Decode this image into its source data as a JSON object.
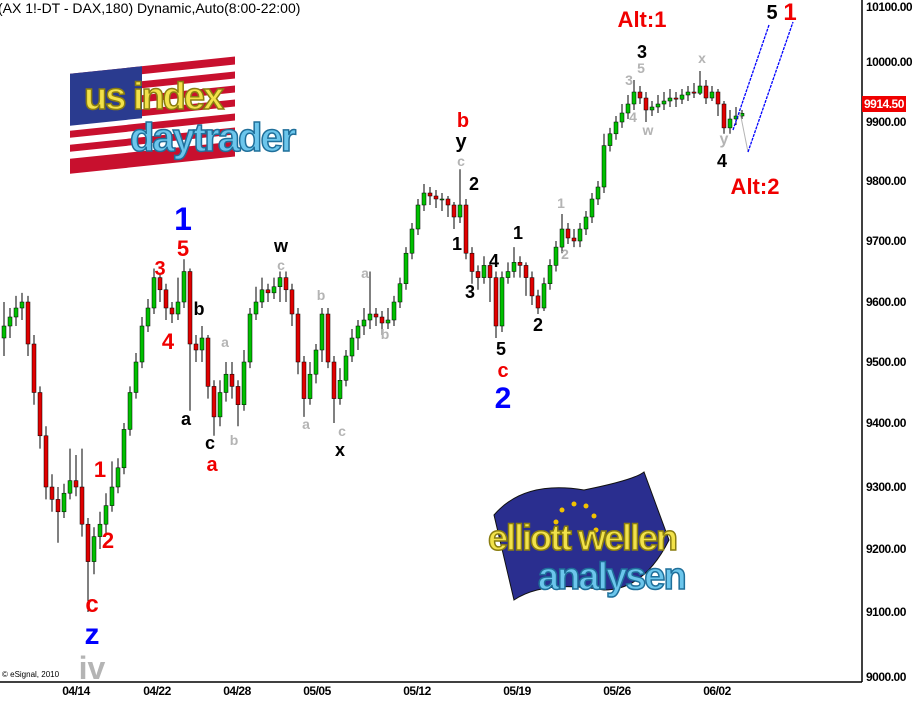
{
  "title": "(AX 1!-DT - DAX,180) Dynamic,Auto(8:00-22:00)",
  "copyright": "© eSignal, 2010",
  "logos": {
    "top": {
      "line1": "us index",
      "line2": "daytrader"
    },
    "bottom": {
      "line1": "elliott wellen",
      "line2": "analysen"
    }
  },
  "colors": {
    "up": "#00c000",
    "down": "#e00000",
    "label_red": "#f00000",
    "label_blue": "#0000ff",
    "label_gray": "#b4b4b4",
    "label_black": "#000000",
    "channel": "#0000ff"
  },
  "annotations": [
    {
      "text": "Alt:1",
      "color": "red"
    },
    {
      "text": "3",
      "color": "black"
    },
    {
      "text": "5",
      "color": "gray"
    },
    {
      "text": "3",
      "color": "gray"
    },
    {
      "text": "4",
      "color": "gray"
    },
    {
      "text": "w",
      "color": "gray"
    },
    {
      "text": "x",
      "color": "gray"
    },
    {
      "text": "5",
      "color": "black"
    },
    {
      "text": "1",
      "color": "red"
    },
    {
      "text": "y",
      "color": "gray"
    },
    {
      "text": "4",
      "color": "black"
    },
    {
      "text": "Alt:2",
      "color": "red"
    },
    {
      "text": "b",
      "color": "red"
    },
    {
      "text": "y",
      "color": "black"
    },
    {
      "text": "c",
      "color": "gray"
    },
    {
      "text": "2",
      "color": "black"
    },
    {
      "text": "1",
      "color": "black"
    },
    {
      "text": "4",
      "color": "black"
    },
    {
      "text": "3",
      "color": "black"
    },
    {
      "text": "1",
      "color": "black"
    },
    {
      "text": "1",
      "color": "gray"
    },
    {
      "text": "2",
      "color": "gray"
    },
    {
      "text": "2",
      "color": "black"
    },
    {
      "text": "5",
      "color": "black"
    },
    {
      "text": "c",
      "color": "red"
    },
    {
      "text": "2",
      "color": "blue"
    },
    {
      "text": "1",
      "color": "blue"
    },
    {
      "text": "5",
      "color": "red"
    },
    {
      "text": "3",
      "color": "red"
    },
    {
      "text": "b",
      "color": "black"
    },
    {
      "text": "4",
      "color": "red"
    },
    {
      "text": "w",
      "color": "black"
    },
    {
      "text": "c",
      "color": "gray"
    },
    {
      "text": "a",
      "color": "gray"
    },
    {
      "text": "b",
      "color": "gray"
    },
    {
      "text": "a",
      "color": "black"
    },
    {
      "text": "c",
      "color": "black"
    },
    {
      "text": "a",
      "color": "red"
    },
    {
      "text": "b",
      "color": "gray"
    },
    {
      "text": "a",
      "color": "gray"
    },
    {
      "text": "b",
      "color": "gray"
    },
    {
      "text": "a",
      "color": "gray"
    },
    {
      "text": "c",
      "color": "gray"
    },
    {
      "text": "x",
      "color": "black"
    },
    {
      "text": "1",
      "color": "red"
    },
    {
      "text": "2",
      "color": "red"
    },
    {
      "text": "c",
      "color": "red"
    },
    {
      "text": "z",
      "color": "blue"
    },
    {
      "text": "iv",
      "color": "gray"
    }
  ],
  "chart_data": {
    "type": "candlestick",
    "title": "(AX 1!-DT - DAX,180) Dynamic,Auto(8:00-22:00)",
    "last_price": "9914.50",
    "y_ticks": [
      "10100.00",
      "10000.00",
      "9900.00",
      "9800.00",
      "9700.00",
      "9600.00",
      "9500.00",
      "9400.00",
      "9300.00",
      "9200.00",
      "9100.00",
      "9000.00"
    ],
    "x_ticks": [
      "04/14",
      "04/22",
      "04/28",
      "05/05",
      "05/12",
      "05/19",
      "05/26",
      "06/02"
    ],
    "ylim": [
      9000,
      10100
    ],
    "grid": false,
    "ohlc": [
      [
        9540,
        9600,
        9510,
        9560
      ],
      [
        9560,
        9590,
        9540,
        9575
      ],
      [
        9575,
        9610,
        9560,
        9590
      ],
      [
        9590,
        9615,
        9570,
        9600
      ],
      [
        9600,
        9610,
        9510,
        9530
      ],
      [
        9530,
        9545,
        9430,
        9450
      ],
      [
        9450,
        9460,
        9360,
        9380
      ],
      [
        9380,
        9395,
        9280,
        9300
      ],
      [
        9300,
        9320,
        9260,
        9280
      ],
      [
        9280,
        9300,
        9210,
        9260
      ],
      [
        9260,
        9305,
        9250,
        9290
      ],
      [
        9290,
        9360,
        9280,
        9310
      ],
      [
        9310,
        9350,
        9285,
        9300
      ],
      [
        9300,
        9360,
        9220,
        9240
      ],
      [
        9240,
        9250,
        9100,
        9180
      ],
      [
        9180,
        9235,
        9160,
        9220
      ],
      [
        9220,
        9260,
        9200,
        9240
      ],
      [
        9240,
        9290,
        9225,
        9270
      ],
      [
        9270,
        9340,
        9260,
        9300
      ],
      [
        9300,
        9345,
        9290,
        9330
      ],
      [
        9330,
        9400,
        9320,
        9390
      ],
      [
        9390,
        9460,
        9380,
        9450
      ],
      [
        9450,
        9515,
        9440,
        9500
      ],
      [
        9500,
        9575,
        9490,
        9560
      ],
      [
        9560,
        9605,
        9550,
        9590
      ],
      [
        9590,
        9655,
        9580,
        9640
      ],
      [
        9640,
        9645,
        9600,
        9620
      ],
      [
        9620,
        9630,
        9570,
        9590
      ],
      [
        9590,
        9600,
        9565,
        9580
      ],
      [
        9580,
        9640,
        9570,
        9600
      ],
      [
        9600,
        9670,
        9590,
        9650
      ],
      [
        9650,
        9655,
        9420,
        9530
      ],
      [
        9530,
        9545,
        9500,
        9520
      ],
      [
        9520,
        9560,
        9500,
        9540
      ],
      [
        9540,
        9545,
        9440,
        9460
      ],
      [
        9460,
        9470,
        9380,
        9410
      ],
      [
        9410,
        9470,
        9395,
        9450
      ],
      [
        9450,
        9500,
        9435,
        9480
      ],
      [
        9480,
        9500,
        9440,
        9460
      ],
      [
        9460,
        9470,
        9395,
        9430
      ],
      [
        9430,
        9520,
        9420,
        9500
      ],
      [
        9500,
        9590,
        9490,
        9580
      ],
      [
        9580,
        9625,
        9570,
        9600
      ],
      [
        9600,
        9640,
        9590,
        9620
      ],
      [
        9620,
        9630,
        9600,
        9615
      ],
      [
        9615,
        9640,
        9605,
        9625
      ],
      [
        9625,
        9650,
        9600,
        9640
      ],
      [
        9640,
        9650,
        9600,
        9620
      ],
      [
        9620,
        9630,
        9560,
        9580
      ],
      [
        9580,
        9590,
        9480,
        9500
      ],
      [
        9500,
        9510,
        9410,
        9440
      ],
      [
        9440,
        9500,
        9430,
        9480
      ],
      [
        9480,
        9530,
        9465,
        9520
      ],
      [
        9520,
        9590,
        9500,
        9580
      ],
      [
        9580,
        9590,
        9490,
        9500
      ],
      [
        9500,
        9510,
        9400,
        9440
      ],
      [
        9440,
        9490,
        9430,
        9470
      ],
      [
        9470,
        9520,
        9460,
        9510
      ],
      [
        9510,
        9555,
        9500,
        9540
      ],
      [
        9540,
        9570,
        9520,
        9560
      ],
      [
        9560,
        9590,
        9545,
        9570
      ],
      [
        9570,
        9650,
        9555,
        9580
      ],
      [
        9580,
        9590,
        9560,
        9575
      ],
      [
        9575,
        9585,
        9545,
        9565
      ],
      [
        9565,
        9590,
        9555,
        9570
      ],
      [
        9570,
        9610,
        9560,
        9600
      ],
      [
        9600,
        9640,
        9590,
        9630
      ],
      [
        9630,
        9690,
        9620,
        9680
      ],
      [
        9680,
        9730,
        9670,
        9720
      ],
      [
        9720,
        9770,
        9710,
        9760
      ],
      [
        9760,
        9795,
        9750,
        9780
      ],
      [
        9780,
        9790,
        9760,
        9775
      ],
      [
        9775,
        9785,
        9755,
        9770
      ],
      [
        9770,
        9780,
        9750,
        9770
      ],
      [
        9770,
        9775,
        9740,
        9760
      ],
      [
        9760,
        9765,
        9720,
        9740
      ],
      [
        9740,
        9820,
        9730,
        9760
      ],
      [
        9760,
        9770,
        9670,
        9680
      ],
      [
        9680,
        9690,
        9630,
        9650
      ],
      [
        9650,
        9660,
        9620,
        9640
      ],
      [
        9640,
        9675,
        9630,
        9660
      ],
      [
        9660,
        9665,
        9600,
        9640
      ],
      [
        9640,
        9650,
        9540,
        9560
      ],
      [
        9560,
        9650,
        9550,
        9640
      ],
      [
        9640,
        9665,
        9630,
        9650
      ],
      [
        9650,
        9690,
        9640,
        9665
      ],
      [
        9665,
        9675,
        9640,
        9660
      ],
      [
        9660,
        9665,
        9610,
        9640
      ],
      [
        9640,
        9650,
        9595,
        9610
      ],
      [
        9610,
        9620,
        9580,
        9590
      ],
      [
        9590,
        9640,
        9585,
        9630
      ],
      [
        9630,
        9670,
        9620,
        9660
      ],
      [
        9660,
        9700,
        9650,
        9690
      ],
      [
        9690,
        9745,
        9680,
        9720
      ],
      [
        9720,
        9730,
        9695,
        9705
      ],
      [
        9705,
        9720,
        9690,
        9700
      ],
      [
        9700,
        9730,
        9690,
        9720
      ],
      [
        9720,
        9750,
        9710,
        9740
      ],
      [
        9740,
        9780,
        9730,
        9770
      ],
      [
        9770,
        9800,
        9760,
        9790
      ],
      [
        9790,
        9880,
        9780,
        9860
      ],
      [
        9860,
        9890,
        9850,
        9880
      ],
      [
        9880,
        9910,
        9870,
        9900
      ],
      [
        9900,
        9930,
        9890,
        9915
      ],
      [
        9915,
        9945,
        9905,
        9930
      ],
      [
        9930,
        9970,
        9920,
        9950
      ],
      [
        9950,
        9960,
        9930,
        9940
      ],
      [
        9940,
        9950,
        9900,
        9920
      ],
      [
        9920,
        9935,
        9910,
        9925
      ],
      [
        9925,
        9945,
        9915,
        9930
      ],
      [
        9930,
        9950,
        9920,
        9935
      ],
      [
        9935,
        9955,
        9925,
        9940
      ],
      [
        9940,
        9950,
        9925,
        9938
      ],
      [
        9938,
        9955,
        9930,
        9945
      ],
      [
        9945,
        9960,
        9935,
        9950
      ],
      [
        9950,
        9965,
        9940,
        9948
      ],
      [
        9948,
        9985,
        9945,
        9960
      ],
      [
        9960,
        9970,
        9930,
        9940
      ],
      [
        9940,
        9960,
        9935,
        9950
      ],
      [
        9950,
        9955,
        9910,
        9930
      ],
      [
        9930,
        9935,
        9880,
        9890
      ],
      [
        9890,
        9920,
        9880,
        9905
      ],
      [
        9905,
        9925,
        9895,
        9910
      ],
      [
        9910,
        9920,
        9905,
        9914.5
      ]
    ]
  }
}
